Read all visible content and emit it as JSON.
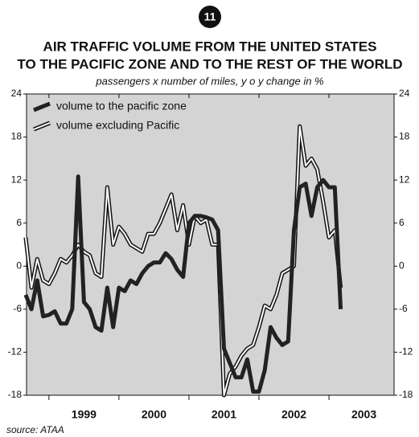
{
  "badge": "11",
  "chart_data": {
    "type": "line",
    "title": [
      "AIR TRAFFIC VOLUME FROM THE UNITED STATES",
      "TO THE PACIFIC ZONE AND TO THE REST OF THE WORLD"
    ],
    "subtitle": "passengers x number of miles, y o y change in %",
    "source": "source: ATAA",
    "x": [
      1998.667,
      1998.75,
      1998.833,
      1998.917,
      1999.0,
      1999.083,
      1999.167,
      1999.25,
      1999.333,
      1999.417,
      1999.5,
      1999.583,
      1999.667,
      1999.75,
      1999.833,
      1999.917,
      2000.0,
      2000.083,
      2000.167,
      2000.25,
      2000.333,
      2000.417,
      2000.5,
      2000.583,
      2000.667,
      2000.75,
      2000.833,
      2000.917,
      2001.0,
      2001.083,
      2001.167,
      2001.25,
      2001.333,
      2001.417,
      2001.5,
      2001.583,
      2001.667,
      2001.75,
      2001.833,
      2001.917,
      2002.0,
      2002.083,
      2002.167,
      2002.25,
      2002.333,
      2002.417,
      2002.5,
      2002.583,
      2002.667,
      2002.75,
      2002.833,
      2002.917,
      2003.0,
      2003.083,
      2003.167
    ],
    "series": [
      {
        "name": "volume to the pacific zone",
        "color": "#222222",
        "style": "solid",
        "values": [
          -4,
          -6,
          -2,
          -7,
          -6.8,
          -6.3,
          -8,
          -8,
          -6,
          12.5,
          -5,
          -6,
          -8.5,
          -9,
          -3,
          -8.5,
          -3,
          -3.5,
          -2,
          -2.5,
          -1,
          0,
          0.5,
          0.5,
          1.8,
          1,
          -0.5,
          -1.5,
          6,
          7,
          7,
          6.8,
          6.5,
          5,
          -11.5,
          -13.5,
          -15.5,
          -15.5,
          -13,
          -17.5,
          -17.5,
          -14.5,
          -8.5,
          -10,
          -11,
          -10.5,
          5,
          11,
          11.5,
          7,
          11,
          12,
          11,
          11,
          -6
        ]
      },
      {
        "name": "volume excluding Pacific",
        "color": "#ffffff",
        "style": "outlined",
        "values": [
          4,
          -3,
          1,
          -2,
          -2.5,
          -1,
          1,
          0.5,
          1.5,
          3,
          2,
          1.5,
          -1,
          -1.5,
          11,
          3,
          5.5,
          4.5,
          3,
          2.5,
          2,
          4.5,
          4.5,
          6,
          8,
          10,
          5,
          8.5,
          3,
          7,
          6,
          6.5,
          3,
          3,
          -18,
          -15,
          -14,
          -12.5,
          -11.5,
          -11,
          -8.5,
          -5.5,
          -6,
          -4,
          -1,
          -0.5,
          0,
          19.5,
          14,
          15,
          13.5,
          9,
          4,
          5,
          -3
        ]
      }
    ],
    "xlim": [
      1998.68,
      2003.93
    ],
    "xticks": [
      {
        "value": 1999.5,
        "label": "1999"
      },
      {
        "value": 2000.5,
        "label": "2000"
      },
      {
        "value": 2001.5,
        "label": "2001"
      },
      {
        "value": 2002.5,
        "label": "2002"
      },
      {
        "value": 2003.5,
        "label": "2003"
      }
    ],
    "year_boundaries": [
      1999,
      2000,
      2001,
      2002,
      2003
    ],
    "ylim": [
      -18,
      24
    ],
    "yticks": [
      -18,
      -12,
      -6,
      0,
      6,
      12,
      18,
      24
    ],
    "background": "#d4d4d4",
    "legend": "upper left"
  }
}
